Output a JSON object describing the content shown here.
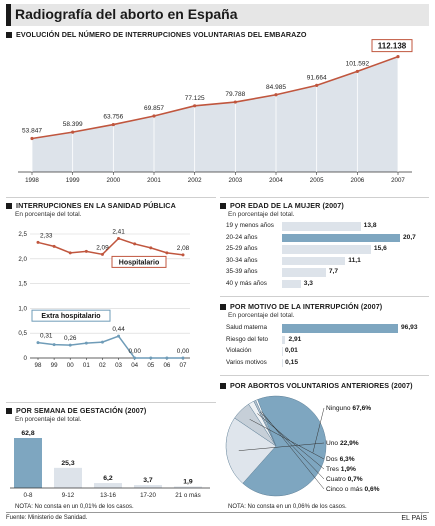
{
  "header": {
    "title": "Radiografía del aborto en España"
  },
  "evolution": {
    "heading": "EVOLUCIÓN DEL NÚMERO DE INTERRUPCIONES VOLUNTARIAS DEL EMBARAZO",
    "chart_data": {
      "type": "area",
      "x": [
        "1998",
        "1999",
        "2000",
        "2001",
        "2002",
        "2003",
        "2004",
        "2005",
        "2006",
        "2007"
      ],
      "values": [
        53847,
        58399,
        63756,
        69857,
        77125,
        79788,
        84985,
        91664,
        101592,
        112138
      ],
      "value_labels": [
        "53.847",
        "58.399",
        "63.756",
        "69.857",
        "77.125",
        "79.788",
        "84.985",
        "91.664",
        "101.592",
        "112.138"
      ],
      "highlight": "112.138",
      "line_color": "#c0563e",
      "fill_color": "#dde3ea"
    }
  },
  "public_health": {
    "heading": "INTERRUPCIONES EN LA SANIDAD PÚBLICA",
    "subtitle": "En porcentaje del total.",
    "chart_data": {
      "type": "line",
      "x": [
        "98",
        "99",
        "00",
        "01",
        "02",
        "03",
        "04",
        "05",
        "06",
        "07"
      ],
      "y_ticks": [
        "0",
        "0,5",
        "1,0",
        "1,5",
        "2,0",
        "2,5"
      ],
      "ylim": [
        0,
        2.5
      ],
      "series": [
        {
          "name": "Hospitalario",
          "color": "#c0563e",
          "values": [
            2.33,
            2.25,
            2.12,
            2.15,
            2.09,
            2.41,
            2.3,
            2.22,
            2.12,
            2.08
          ]
        },
        {
          "name": "Extra hospitalario",
          "color": "#6f9cb8",
          "values": [
            0.31,
            0.27,
            0.26,
            0.3,
            0.32,
            0.44,
            0.0,
            0.0,
            0.0,
            0.0
          ]
        }
      ],
      "annotations": [
        {
          "series": 0,
          "index": 0,
          "text": "2,33"
        },
        {
          "series": 0,
          "index": 4,
          "text": "2,09"
        },
        {
          "series": 0,
          "index": 5,
          "text": "2,41"
        },
        {
          "series": 0,
          "index": 9,
          "text": "2,08"
        },
        {
          "series": 1,
          "index": 0,
          "text": "0,31"
        },
        {
          "series": 1,
          "index": 2,
          "text": "0,26"
        },
        {
          "series": 1,
          "index": 5,
          "text": "0,44"
        },
        {
          "series": 1,
          "index": 6,
          "text": "0,00"
        },
        {
          "series": 1,
          "index": 9,
          "text": "0,00"
        }
      ]
    }
  },
  "age": {
    "heading": "POR EDAD DE LA MUJER (2007)",
    "subtitle": "En porcentaje del total.",
    "chart_data": {
      "type": "bar",
      "categories": [
        "19 y menos años",
        "20-24 años",
        "25-29 años",
        "30-34 años",
        "35-39 años",
        "40 y más años"
      ],
      "values": [
        13.8,
        20.7,
        15.6,
        11.1,
        7.7,
        3.3
      ],
      "value_labels": [
        "13,8",
        "20,7",
        "15,6",
        "11,1",
        "7,7",
        "3,3"
      ],
      "highlight_index": 1
    }
  },
  "motive": {
    "heading": "POR MOTIVO DE LA INTERRUPCIÓN (2007)",
    "subtitle": "En porcentaje del total.",
    "chart_data": {
      "type": "bar",
      "categories": [
        "Salud materna",
        "Riesgo del feto",
        "Violación",
        "Varios motivos"
      ],
      "values": [
        96.93,
        2.91,
        0.01,
        0.15
      ],
      "value_labels": [
        "96,93",
        "2,91",
        "0,01",
        "0,15"
      ],
      "highlight_index": 0
    }
  },
  "previous": {
    "heading": "POR ABORTOS VOLUNTARIOS ANTERIORES (2007)",
    "chart_data": {
      "type": "pie",
      "labels": [
        "Ninguno",
        "Uno",
        "Dos",
        "Tres",
        "Cuatro",
        "Cinco o más"
      ],
      "values": [
        67.6,
        22.9,
        6.3,
        1.9,
        0.7,
        0.6
      ],
      "value_labels": [
        "67,6%",
        "22,9%",
        "6,3%",
        "1,9%",
        "0,7%",
        "0,6%"
      ],
      "colors": [
        "#7ea6c0",
        "#dfe5ec",
        "#c6cfd8",
        "#eef1f4",
        "#b5c2ce",
        "#ffffff"
      ]
    },
    "note": "NOTA: No consta en un 0,06% de los casos."
  },
  "gestation": {
    "heading": "POR SEMANA DE GESTACIÓN (2007)",
    "subtitle": "En porcentaje del total.",
    "chart_data": {
      "type": "bar",
      "categories": [
        "0-8",
        "9-12",
        "13-16",
        "17-20",
        "21 o más"
      ],
      "values": [
        62.8,
        25.3,
        6.2,
        3.7,
        1.9
      ],
      "value_labels": [
        "62,8",
        "25,3",
        "6,2",
        "3,7",
        "1,9"
      ],
      "highlight_index": 0
    },
    "note": "NOTA: No consta en un 0,01% de los casos."
  },
  "footer": {
    "source": "Fuente: Ministerio de Sanidad.",
    "brand": "EL PAÍS"
  }
}
